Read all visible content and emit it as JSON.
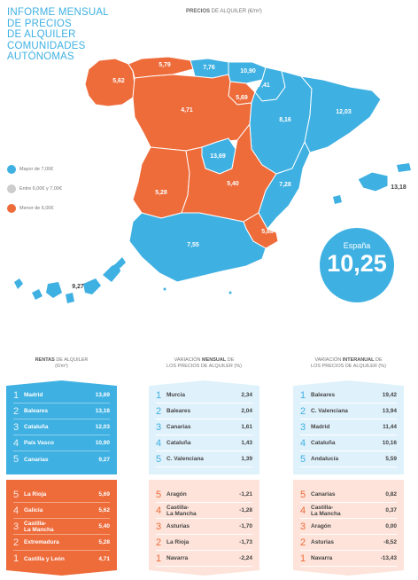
{
  "title_lines": [
    "INFORME MENSUAL",
    "DE PRECIOS",
    "DE ALQUILER",
    "COMUNIDADES",
    "AUTÓNOMAS"
  ],
  "map_title_bold": "PRECIOS",
  "map_title_rest": " DE ALQUILER (€/m²)",
  "colors": {
    "blue": "#3eb0e2",
    "grey": "#cccccc",
    "orange": "#ee6b3a",
    "light_blue": "#dff1fb",
    "light_orange": "#fde3d9"
  },
  "legend": [
    {
      "label": "Mayor de 7,00€",
      "color": "#3eb0e2"
    },
    {
      "label": "Entre 6,00€ y 7,00€",
      "color": "#cccccc"
    },
    {
      "label": "Menor de 6,00€",
      "color": "#ee6b3a"
    }
  ],
  "region_values": {
    "galicia": "5,62",
    "asturias": "5,79",
    "cantabria": "7,76",
    "pais_vasco": "10,90",
    "navarra": "7,41",
    "la_rioja": "5,69",
    "aragon": "8,16",
    "cataluna": "12,03",
    "castilla_leon": "4,71",
    "madrid": "13,69",
    "castilla_la_mancha": "5,40",
    "extremadura": "5,28",
    "valencia": "7,28",
    "murcia": "5,88",
    "andalucia": "7,55",
    "baleares": "13,18",
    "canarias": "9,27"
  },
  "spain": {
    "label": "España",
    "value": "10,25"
  },
  "col1": {
    "head_bold": "RENTAS",
    "head_rest": " DE ALQUILER",
    "head_unit": "(€/m²)",
    "top": [
      {
        "rank": "1",
        "name": "Madrid",
        "value": "13,69"
      },
      {
        "rank": "2",
        "name": "Baleares",
        "value": "13,18"
      },
      {
        "rank": "3",
        "name": "Cataluña",
        "value": "12,03"
      },
      {
        "rank": "4",
        "name": "País Vasco",
        "value": "10,90"
      },
      {
        "rank": "5",
        "name": "Canarias",
        "value": "9,27"
      }
    ],
    "bottom": [
      {
        "rank": "5",
        "name": "La Rioja",
        "value": "5,69"
      },
      {
        "rank": "4",
        "name": "Galicia",
        "value": "5,62"
      },
      {
        "rank": "3",
        "name": "Castilla-\nLa Mancha",
        "value": "5,40"
      },
      {
        "rank": "2",
        "name": "Extremadura",
        "value": "5,28"
      },
      {
        "rank": "1",
        "name": "Castilla y León",
        "value": "4,71"
      }
    ]
  },
  "col2": {
    "head_pre": "VARIACIÓN ",
    "head_bold": "MENSUAL",
    "head_rest": " DE",
    "head_line2": "LOS PRECIOS DE ALQUILER (%)",
    "top": [
      {
        "rank": "1",
        "name": "Murcia",
        "value": "2,34"
      },
      {
        "rank": "2",
        "name": "Baleares",
        "value": "2,04"
      },
      {
        "rank": "3",
        "name": "Canarias",
        "value": "1,61"
      },
      {
        "rank": "4",
        "name": "Cataluña",
        "value": "1,43"
      },
      {
        "rank": "5",
        "name": "C. Valenciana",
        "value": "1,39"
      }
    ],
    "bottom": [
      {
        "rank": "5",
        "name": "Aragón",
        "value": "-1,21"
      },
      {
        "rank": "4",
        "name": "Castilla-\nLa Mancha",
        "value": "-1,28"
      },
      {
        "rank": "3",
        "name": "Asturias",
        "value": "-1,70"
      },
      {
        "rank": "2",
        "name": "La Rioja",
        "value": "-1,73"
      },
      {
        "rank": "1",
        "name": "Navarra",
        "value": "-2,24"
      }
    ]
  },
  "col3": {
    "head_pre": "VARIACIÓN ",
    "head_bold": "INTERANUAL",
    "head_rest": " DE",
    "head_line2": "LOS PRECIOS DE ALQUILER (%)",
    "top": [
      {
        "rank": "1",
        "name": "Baleares",
        "value": "19,42"
      },
      {
        "rank": "2",
        "name": "C. Valenciana",
        "value": "13,94"
      },
      {
        "rank": "3",
        "name": "Madrid",
        "value": "11,44"
      },
      {
        "rank": "4",
        "name": "Cataluña",
        "value": "10,16"
      },
      {
        "rank": "5",
        "name": "Andalucía",
        "value": "5,59"
      }
    ],
    "bottom": [
      {
        "rank": "5",
        "name": "Canarias",
        "value": "0,82"
      },
      {
        "rank": "4",
        "name": "Castilla-\nLa Mancha",
        "value": "0,37"
      },
      {
        "rank": "3",
        "name": "Aragón",
        "value": "0,00"
      },
      {
        "rank": "2",
        "name": "Asturias",
        "value": "-8,52"
      },
      {
        "rank": "1",
        "name": "Navarra",
        "value": "-13,43"
      }
    ]
  }
}
